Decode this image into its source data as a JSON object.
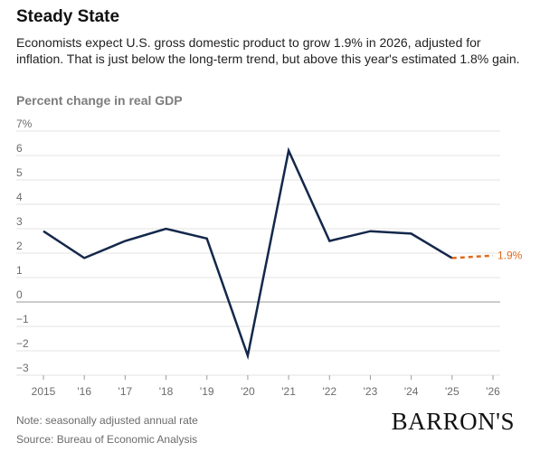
{
  "header": {
    "title": "Steady State",
    "subtitle": "Economists expect U.S. gross domestic product to grow 1.9% in 2026, adjusted for inflation. That is just below the long-term trend, but above this year's estimated 1.8% gain."
  },
  "footer": {
    "note": "Note: seasonally adjusted annual rate",
    "source": "Source: Bureau of Economic Analysis",
    "logo": "BARRON'S"
  },
  "colors": {
    "actual_line": "#14284b",
    "forecast_line": "#e06a1b",
    "grid": "#e3e3e3",
    "zero_line": "#9a9a9a"
  },
  "chart_data": {
    "type": "line",
    "title": "Steady State",
    "ylabel": "Percent change in real GDP",
    "ylim": [
      -3,
      7
    ],
    "yticks": [
      7,
      6,
      5,
      4,
      3,
      2,
      1,
      0,
      -1,
      -2,
      -3
    ],
    "ytick_labels": [
      "7%",
      "6",
      "5",
      "4",
      "3",
      "2",
      "1",
      "0",
      "−1",
      "−2",
      "−3"
    ],
    "x": [
      2015,
      2016,
      2017,
      2018,
      2019,
      2020,
      2021,
      2022,
      2023,
      2024,
      2025,
      2026
    ],
    "xtick_labels": [
      "2015",
      "'16",
      "'17",
      "'18",
      "'19",
      "'20",
      "'21",
      "'22",
      "'23",
      "'24",
      "'25",
      "'26"
    ],
    "grid": true,
    "series": [
      {
        "style": "solid",
        "x": [
          2015,
          2016,
          2017,
          2018,
          2019,
          2020,
          2021,
          2022,
          2023,
          2024,
          2025
        ],
        "values": [
          2.9,
          1.8,
          2.5,
          3.0,
          2.6,
          -2.2,
          6.2,
          2.5,
          2.9,
          2.8,
          1.8
        ]
      },
      {
        "style": "dashed",
        "x": [
          2025,
          2026
        ],
        "values": [
          1.8,
          1.9
        ]
      }
    ],
    "annotations": [
      {
        "text": "1.9%",
        "x": 2026,
        "y": 1.9
      }
    ]
  }
}
